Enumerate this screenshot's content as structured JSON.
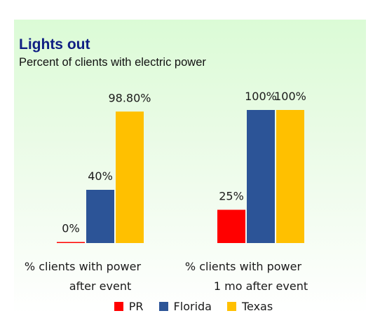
{
  "chart_data": {
    "type": "bar",
    "title": "Lights out",
    "subtitle": "Percent of clients with electric power",
    "categories": [
      [
        "% clients with power",
        "after event"
      ],
      [
        "% clients with power",
        "1 mo after event"
      ]
    ],
    "series": [
      {
        "name": "PR",
        "color": "#ff0000",
        "values": [
          0,
          25
        ],
        "labels": [
          "0%",
          "25%"
        ]
      },
      {
        "name": "Florida",
        "color": "#2c5497",
        "values": [
          40,
          100
        ],
        "labels": [
          "40%",
          "100%"
        ]
      },
      {
        "name": "Texas",
        "color": "#ffc000",
        "values": [
          98.8,
          100
        ],
        "labels": [
          "98.80%",
          "100%"
        ]
      }
    ],
    "ylim": [
      0,
      100
    ],
    "grid": false,
    "legend_position": "bottom"
  }
}
